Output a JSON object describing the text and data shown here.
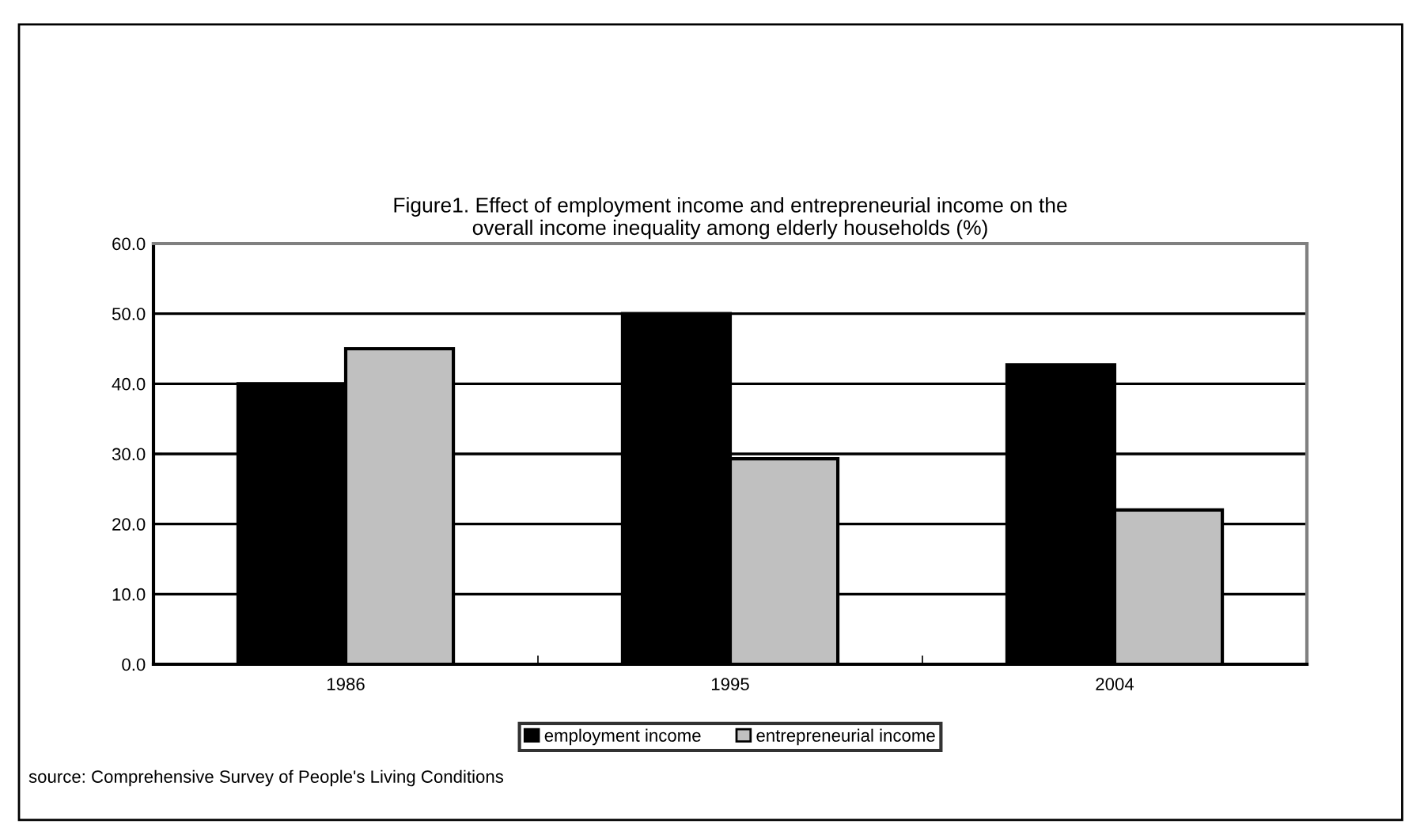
{
  "chart_data": {
    "type": "bar",
    "title": "Figure1. Effect of employment income and entrepreneurial income on the\noverall income inequality among elderly households (%)",
    "categories": [
      "1986",
      "1995",
      "2004"
    ],
    "series": [
      {
        "name": "employment income",
        "color": "#000000",
        "values": [
          40.0,
          50.0,
          42.7
        ]
      },
      {
        "name": "entrepreneurial income",
        "color": "#c0c0c0",
        "values": [
          45.0,
          29.3,
          22.0
        ]
      }
    ],
    "ylim": [
      0,
      60
    ],
    "yticks": [
      {
        "value": 0,
        "label": "0.0"
      },
      {
        "value": 10,
        "label": "10.0"
      },
      {
        "value": 20,
        "label": "20.0"
      },
      {
        "value": 30,
        "label": "30.0"
      },
      {
        "value": 40,
        "label": "40.0"
      },
      {
        "value": 50,
        "label": "50.0"
      },
      {
        "value": 60,
        "label": "60.0"
      }
    ],
    "grid": "y",
    "legend": "bottom",
    "annotations": [
      "source: Comprehensive Survey of People's Living Conditions"
    ]
  }
}
